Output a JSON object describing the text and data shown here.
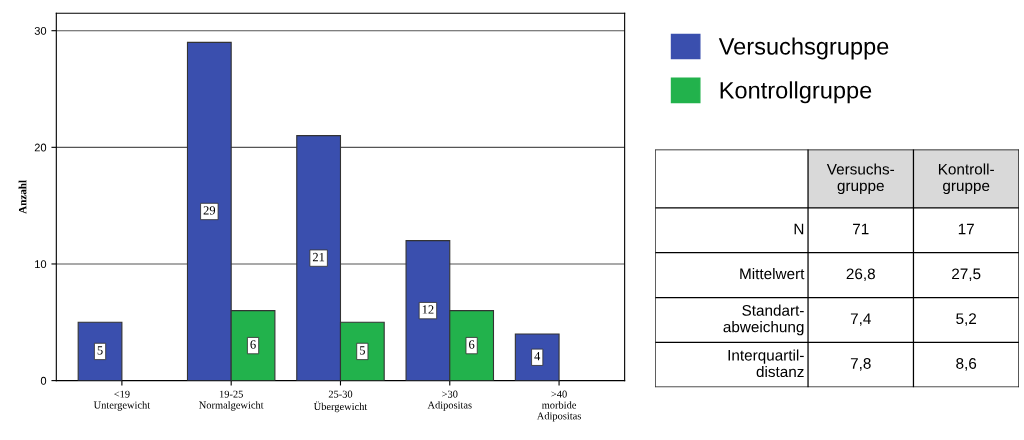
{
  "chart_data": [
    {
      "type": "bar",
      "ylabel": "Anzahl",
      "categories": [
        "<19\nUntergewicht",
        "19-25\nNormalgewicht",
        "25-30\nÜbergewicht",
        ">30\nAdipositas",
        ">40\nmorbide\nAdipositas"
      ],
      "series": [
        {
          "name": "Versuchsgruppe",
          "color": "#3a4fae",
          "values": [
            5,
            29,
            21,
            12,
            4
          ]
        },
        {
          "name": "Kontrollgruppe",
          "color": "#22b24c",
          "values": [
            null,
            6,
            5,
            6,
            null
          ]
        }
      ],
      "ylim": [
        0,
        31.5
      ],
      "yticks": [
        0,
        10,
        20,
        30
      ],
      "grid": "y",
      "legend": "right",
      "data_labels": true
    },
    {
      "type": "other",
      "categories": [
        "Versuchs-\ngruppe",
        "Kontroll-\ngruppe"
      ],
      "y_categories": [
        "N",
        "Mittelwert",
        "Standart-\nabweichung",
        "Interquartil-\ndistanz"
      ],
      "cell_labels": [
        [
          "71",
          "17"
        ],
        [
          "26,8",
          "27,5"
        ],
        [
          "7,4",
          "5,2"
        ],
        [
          "7,8",
          "8,6"
        ]
      ]
    }
  ]
}
